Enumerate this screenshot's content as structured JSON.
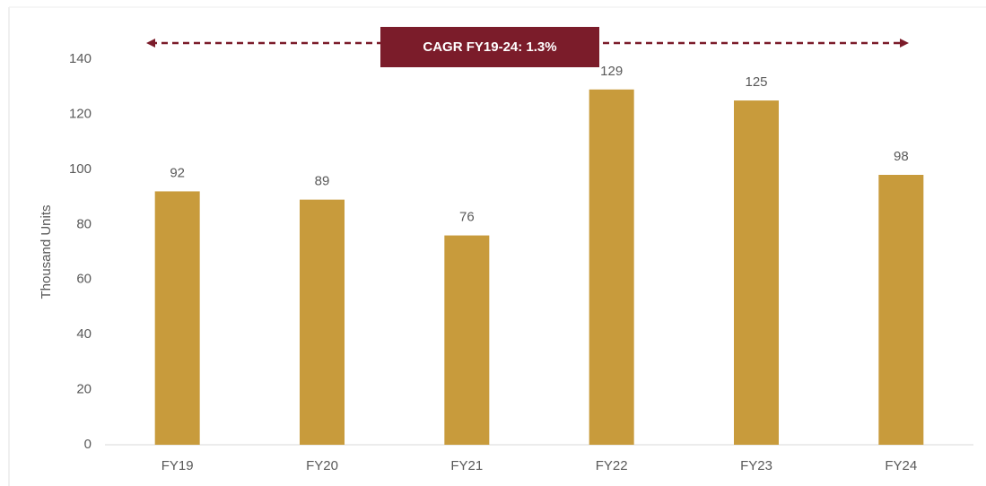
{
  "chart_data": {
    "type": "bar",
    "ylabel": "Thousand Units",
    "annotation": "CAGR FY19-24: 1.3%",
    "categories": [
      "FY19",
      "FY20",
      "FY21",
      "FY22",
      "FY23",
      "FY24"
    ],
    "values": [
      92,
      89,
      76,
      129,
      125,
      98
    ],
    "color": "#c89b3c",
    "annotation_color": "#7b1c2a",
    "ylim": [
      0,
      140
    ],
    "yticks": [
      0,
      20,
      40,
      60,
      80,
      100,
      120,
      140
    ],
    "grid": false
  }
}
